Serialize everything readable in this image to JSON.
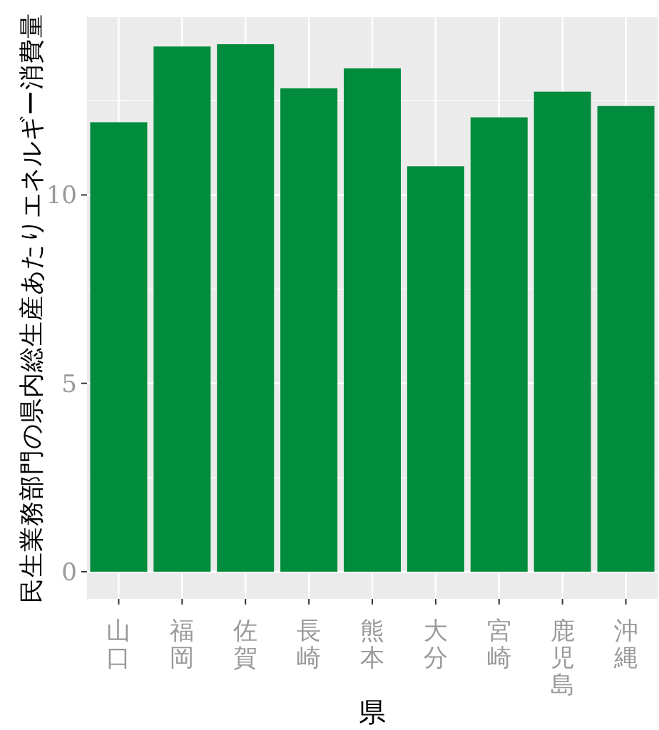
{
  "chart_data": {
    "type": "bar",
    "xlabel": "県",
    "ylabel": "民生業務部門の県内総生産あたりエネルギー消費量",
    "categories": [
      "山口",
      "福岡",
      "佐賀",
      "長崎",
      "熊本",
      "大分",
      "宮崎",
      "鹿児島",
      "沖縄"
    ],
    "values": [
      11.93,
      13.94,
      14.0,
      12.83,
      13.36,
      10.76,
      12.06,
      12.74,
      12.36
    ],
    "color": "#008c3c",
    "ylim": [
      -0.72,
      14.72
    ],
    "yticks": [
      0,
      5,
      10
    ],
    "grid": true
  }
}
